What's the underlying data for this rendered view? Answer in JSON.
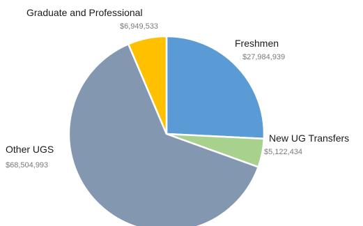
{
  "chart_data": {
    "type": "pie",
    "title": "",
    "legend": "none",
    "start_angle_deg": 0,
    "direction": "clockwise",
    "slices": [
      {
        "label": "Freshmen",
        "value_label": "$27,984,939",
        "value": 27984939,
        "color": "#5b9bd5"
      },
      {
        "label": "New UG Transfers",
        "value_label": "$5,122,434",
        "value": 5122434,
        "color": "#a9d18e"
      },
      {
        "label": "Other UGS",
        "value_label": "$68,504,993",
        "value": 68504993,
        "color": "#8497b0"
      },
      {
        "label": "Graduate and Professional",
        "value_label": "$6,949,533",
        "value": 6949533,
        "color": "#ffc000"
      }
    ]
  }
}
